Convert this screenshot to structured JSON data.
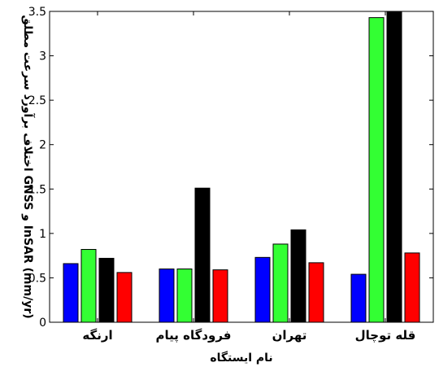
{
  "chart_data": {
    "type": "bar",
    "categories": [
      "ارنگه",
      "فرودگاه پیام",
      "تهران",
      "قله توچال"
    ],
    "series": [
      {
        "color": "#0000ff",
        "values": [
          0.66,
          0.6,
          0.73,
          0.54
        ]
      },
      {
        "color": "#33ff33",
        "values": [
          0.82,
          0.6,
          0.88,
          3.43
        ]
      },
      {
        "color": "#000000",
        "values": [
          0.72,
          1.51,
          1.04,
          3.5
        ]
      },
      {
        "color": "#ff0000",
        "values": [
          0.56,
          0.59,
          0.67,
          0.78
        ]
      }
    ],
    "xlabel": "نام ایستگاه",
    "ylabel": "اختلاف برآورد سرعت مطلق GNSS و InSAR (mm/yr)",
    "ylim": [
      0,
      3.5
    ],
    "yticks": [
      "0",
      "0.5",
      "1",
      "1.5",
      "2",
      "2.5",
      "3",
      "3.5"
    ],
    "grid": false,
    "legend": "none"
  }
}
